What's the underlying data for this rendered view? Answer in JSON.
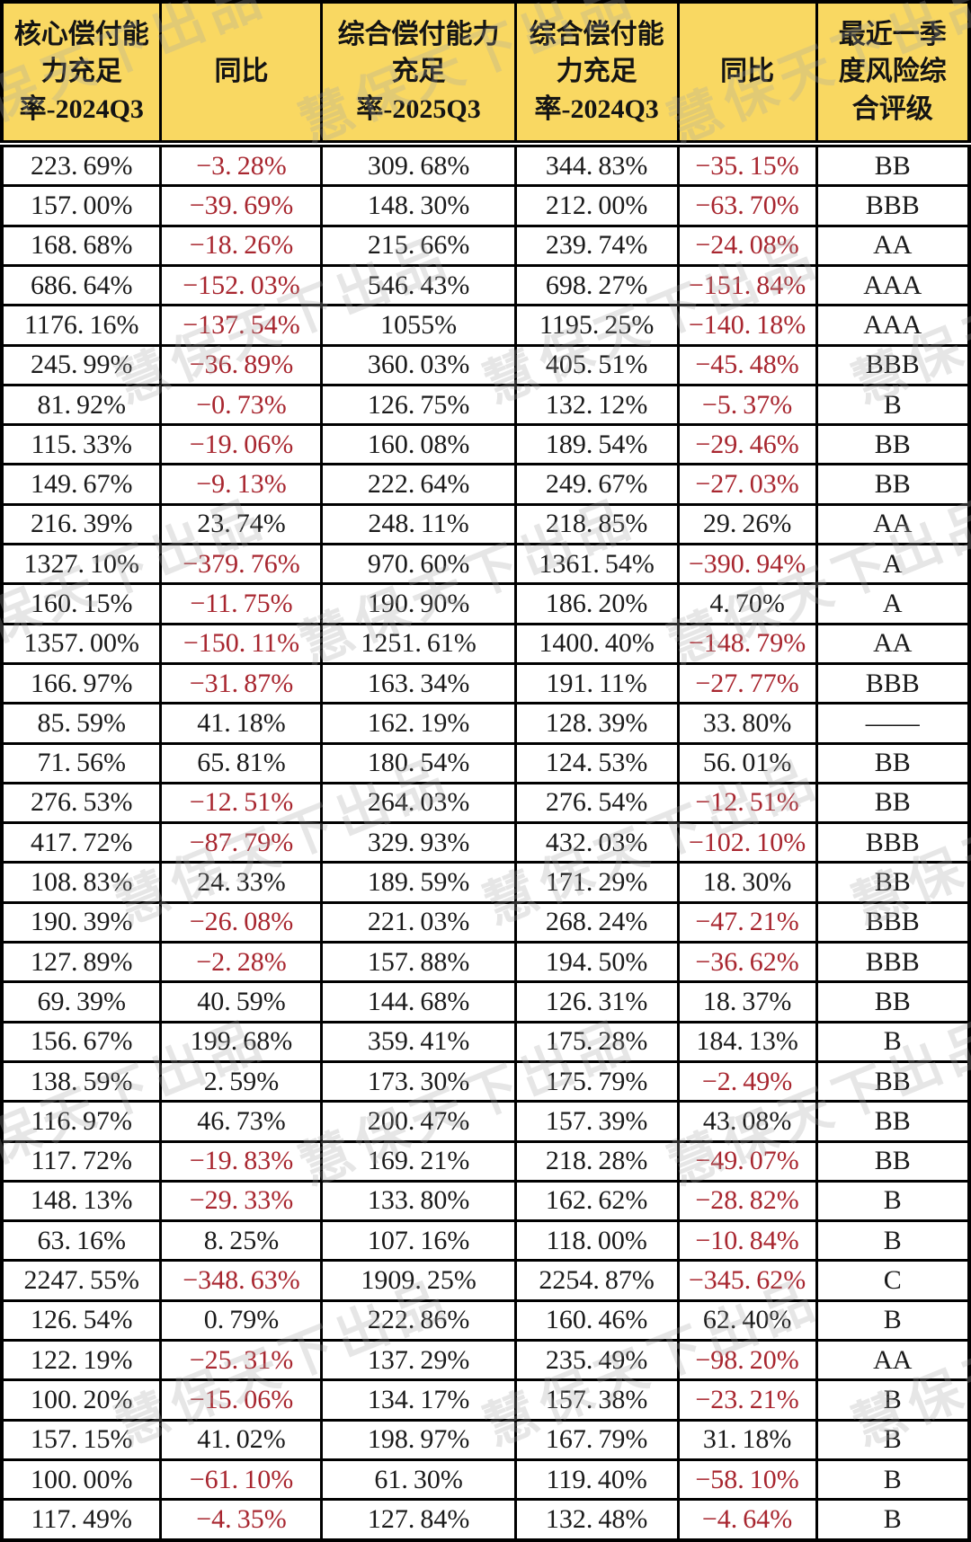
{
  "chart_data": {
    "type": "table",
    "columns": [
      "核心偿付能力充足率-2024Q3",
      "同比",
      "综合偿付能力充足率-2025Q3",
      "综合偿付能力充足率-2024Q3",
      "同比",
      "最近一季度风险综合评级"
    ],
    "rows": [
      [
        "223.69%",
        "-3.28%",
        "309.68%",
        "344.83%",
        "-35.15%",
        "BB"
      ],
      [
        "157.00%",
        "-39.69%",
        "148.30%",
        "212.00%",
        "-63.70%",
        "BBB"
      ],
      [
        "168.68%",
        "-18.26%",
        "215.66%",
        "239.74%",
        "-24.08%",
        "AA"
      ],
      [
        "686.64%",
        "-152.03%",
        "546.43%",
        "698.27%",
        "-151.84%",
        "AAA"
      ],
      [
        "1176.16%",
        "-137.54%",
        "1055%",
        "1195.25%",
        "-140.18%",
        "AAA"
      ],
      [
        "245.99%",
        "-36.89%",
        "360.03%",
        "405.51%",
        "-45.48%",
        "BBB"
      ],
      [
        "81.92%",
        "-0.73%",
        "126.75%",
        "132.12%",
        "-5.37%",
        "B"
      ],
      [
        "115.33%",
        "-19.06%",
        "160.08%",
        "189.54%",
        "-29.46%",
        "BB"
      ],
      [
        "149.67%",
        "-9.13%",
        "222.64%",
        "249.67%",
        "-27.03%",
        "BB"
      ],
      [
        "216.39%",
        "23.74%",
        "248.11%",
        "218.85%",
        "29.26%",
        "AA"
      ],
      [
        "1327.10%",
        "-379.76%",
        "970.60%",
        "1361.54%",
        "-390.94%",
        "A"
      ],
      [
        "160.15%",
        "-11.75%",
        "190.90%",
        "186.20%",
        "4.70%",
        "A"
      ],
      [
        "1357.00%",
        "-150.11%",
        "1251.61%",
        "1400.40%",
        "-148.79%",
        "AA"
      ],
      [
        "166.97%",
        "-31.87%",
        "163.34%",
        "191.11%",
        "-27.77%",
        "BBB"
      ],
      [
        "85.59%",
        "41.18%",
        "162.19%",
        "128.39%",
        "33.80%",
        "——"
      ],
      [
        "71.56%",
        "65.81%",
        "180.54%",
        "124.53%",
        "56.01%",
        "BB"
      ],
      [
        "276.53%",
        "-12.51%",
        "264.03%",
        "276.54%",
        "-12.51%",
        "BB"
      ],
      [
        "417.72%",
        "-87.79%",
        "329.93%",
        "432.03%",
        "-102.10%",
        "BBB"
      ],
      [
        "108.83%",
        "24.33%",
        "189.59%",
        "171.29%",
        "18.30%",
        "BB"
      ],
      [
        "190.39%",
        "-26.08%",
        "221.03%",
        "268.24%",
        "-47.21%",
        "BBB"
      ],
      [
        "127.89%",
        "-2.28%",
        "157.88%",
        "194.50%",
        "-36.62%",
        "BBB"
      ],
      [
        "69.39%",
        "40.59%",
        "144.68%",
        "126.31%",
        "18.37%",
        "BB"
      ],
      [
        "156.67%",
        "199.68%",
        "359.41%",
        "175.28%",
        "184.13%",
        "B"
      ],
      [
        "138.59%",
        "2.59%",
        "173.30%",
        "175.79%",
        "-2.49%",
        "BB"
      ],
      [
        "116.97%",
        "46.73%",
        "200.47%",
        "157.39%",
        "43.08%",
        "BB"
      ],
      [
        "117.72%",
        "-19.83%",
        "169.21%",
        "218.28%",
        "-49.07%",
        "BB"
      ],
      [
        "148.13%",
        "-29.33%",
        "133.80%",
        "162.62%",
        "-28.82%",
        "B"
      ],
      [
        "63.16%",
        "8.25%",
        "107.16%",
        "118.00%",
        "-10.84%",
        "B"
      ],
      [
        "2247.55%",
        "-348.63%",
        "1909.25%",
        "2254.87%",
        "-345.62%",
        "C"
      ],
      [
        "126.54%",
        "0.79%",
        "222.86%",
        "160.46%",
        "62.40%",
        "B"
      ],
      [
        "122.19%",
        "-25.31%",
        "137.29%",
        "235.49%",
        "-98.20%",
        "AA"
      ],
      [
        "100.20%",
        "-15.06%",
        "134.17%",
        "157.38%",
        "-23.21%",
        "B"
      ],
      [
        "157.15%",
        "41.02%",
        "198.97%",
        "167.79%",
        "31.18%",
        "B"
      ],
      [
        "100.00%",
        "-61.10%",
        "61.30%",
        "119.40%",
        "-58.10%",
        "B"
      ],
      [
        "117.49%",
        "-4.35%",
        "127.84%",
        "132.48%",
        "-4.64%",
        "B"
      ]
    ]
  },
  "watermark": {
    "text": "慧保天下出品"
  },
  "colors": {
    "header_bg": "#F9D862",
    "negative_text": "#A8262F",
    "positive_text": "#1A1A1A",
    "border": "#000000"
  }
}
